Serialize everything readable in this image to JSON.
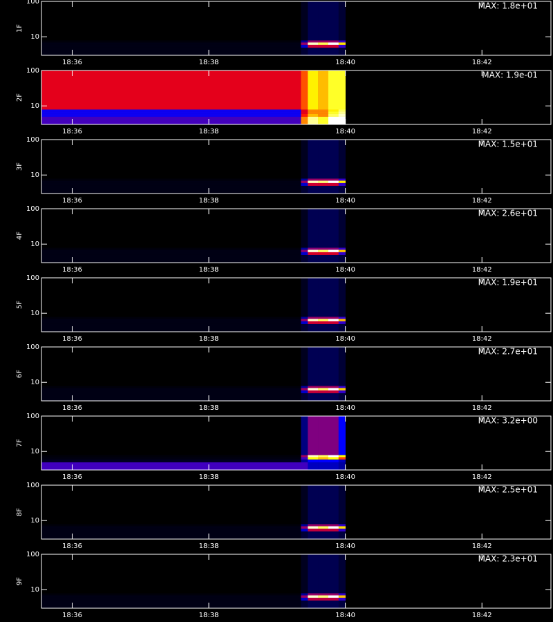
{
  "colormap": [
    "#000000",
    "#0000ff",
    "#ff0000",
    "#ffff00",
    "#ffffff"
  ],
  "chart_data": [
    {
      "type": "heatmap",
      "ylabel": "1F",
      "max": {
        "value": 18,
        "label": "MAX: 1.8e+01"
      },
      "log_y": true,
      "xlim": [
        35.55,
        43.01
      ],
      "ylim": [
        3,
        100
      ],
      "xticks": [
        {
          "value": 36,
          "label": "18:36"
        },
        {
          "value": 38,
          "label": "18:38"
        },
        {
          "value": 40,
          "label": "18:40"
        },
        {
          "value": 42,
          "label": "18:42"
        }
      ],
      "yticks": [
        10,
        100
      ],
      "x_edges": [
        35.55,
        39.35,
        39.45,
        39.6,
        39.75,
        39.9,
        40.0
      ],
      "y_edges": [
        3,
        5,
        6,
        7,
        8,
        100
      ],
      "z": [
        [
          0.36,
          0.9,
          1.4,
          1.4,
          1.4,
          1.1
        ],
        [
          0.36,
          3.6,
          8.1,
          8.1,
          8.1,
          5.4
        ],
        [
          0.36,
          7.2,
          17,
          15,
          18,
          13
        ],
        [
          0.18,
          2.7,
          7.2,
          7.2,
          7.2,
          5.4
        ],
        [
          0,
          0.54,
          1.4,
          1.4,
          1.4,
          0.9
        ]
      ]
    },
    {
      "type": "heatmap",
      "ylabel": "2F",
      "max": {
        "value": 0.19,
        "label": "MAX: 1.9e-01"
      },
      "log_y": true,
      "xlim": [
        35.55,
        43.01
      ],
      "ylim": [
        3,
        100
      ],
      "xticks": [
        {
          "value": 36,
          "label": "18:36"
        },
        {
          "value": 38,
          "label": "18:38"
        },
        {
          "value": 40,
          "label": "18:40"
        },
        {
          "value": 42,
          "label": "18:42"
        }
      ],
      "yticks": [
        10,
        100
      ],
      "x_edges": [
        35.55,
        39.35,
        39.45,
        39.6,
        39.75,
        39.9,
        40.0
      ],
      "y_edges": [
        3,
        5,
        6,
        7,
        8,
        100
      ],
      "z": [
        [
          0.06,
          0.12,
          0.17,
          0.15,
          0.19,
          0.19
        ],
        [
          0.05,
          0.1,
          0.13,
          0.12,
          0.16,
          0.18
        ],
        [
          0.05,
          0.09,
          0.12,
          0.12,
          0.15,
          0.17
        ],
        [
          0.05,
          0.09,
          0.12,
          0.12,
          0.14,
          0.16
        ],
        [
          0.09,
          0.11,
          0.14,
          0.13,
          0.15,
          0.15
        ]
      ]
    },
    {
      "type": "heatmap",
      "ylabel": "3F",
      "max": {
        "value": 15,
        "label": "MAX: 1.5e+01"
      },
      "log_y": true,
      "xlim": [
        35.55,
        43.01
      ],
      "ylim": [
        3,
        100
      ],
      "xticks": [
        {
          "value": 36,
          "label": "18:36"
        },
        {
          "value": 38,
          "label": "18:38"
        },
        {
          "value": 40,
          "label": "18:40"
        },
        {
          "value": 42,
          "label": "18:42"
        }
      ],
      "yticks": [
        10,
        100
      ],
      "x_edges": [
        35.55,
        39.35,
        39.45,
        39.6,
        39.75,
        39.9,
        40.0
      ],
      "y_edges": [
        3,
        5,
        6,
        7,
        8,
        100
      ],
      "z": [
        [
          0.3,
          0.75,
          1.2,
          1.2,
          1.2,
          0.9
        ],
        [
          0.3,
          3,
          6.8,
          6.8,
          6.8,
          4.5
        ],
        [
          0.3,
          6,
          14,
          13,
          15,
          11
        ],
        [
          0.15,
          2.3,
          6,
          6,
          6,
          4.5
        ],
        [
          0,
          0.45,
          1.2,
          1.2,
          1.2,
          0.75
        ]
      ]
    },
    {
      "type": "heatmap",
      "ylabel": "4F",
      "max": {
        "value": 26,
        "label": "MAX: 2.6e+01"
      },
      "log_y": true,
      "xlim": [
        35.55,
        43.01
      ],
      "ylim": [
        3,
        100
      ],
      "xticks": [
        {
          "value": 36,
          "label": "18:36"
        },
        {
          "value": 38,
          "label": "18:38"
        },
        {
          "value": 40,
          "label": "18:40"
        },
        {
          "value": 42,
          "label": "18:42"
        }
      ],
      "yticks": [
        10,
        100
      ],
      "x_edges": [
        35.55,
        39.35,
        39.45,
        39.6,
        39.75,
        39.9,
        40.0
      ],
      "y_edges": [
        3,
        5,
        6,
        7,
        8,
        100
      ],
      "z": [
        [
          0.52,
          1.3,
          2.1,
          2.1,
          2.1,
          1.6
        ],
        [
          0.52,
          5.2,
          12,
          12,
          12,
          7.8
        ],
        [
          0.52,
          10,
          25,
          22,
          26,
          18
        ],
        [
          0.26,
          3.9,
          10,
          10,
          10,
          7.8
        ],
        [
          0,
          0.78,
          2.1,
          2.1,
          2.1,
          1.3
        ]
      ]
    },
    {
      "type": "heatmap",
      "ylabel": "5F",
      "max": {
        "value": 19,
        "label": "MAX: 1.9e+01"
      },
      "log_y": true,
      "xlim": [
        35.55,
        43.01
      ],
      "ylim": [
        3,
        100
      ],
      "xticks": [
        {
          "value": 36,
          "label": "18:36"
        },
        {
          "value": 38,
          "label": "18:38"
        },
        {
          "value": 40,
          "label": "18:40"
        },
        {
          "value": 42,
          "label": "18:42"
        }
      ],
      "yticks": [
        10,
        100
      ],
      "x_edges": [
        35.55,
        39.35,
        39.45,
        39.6,
        39.75,
        39.9,
        40.0
      ],
      "y_edges": [
        3,
        5,
        6,
        7,
        8,
        100
      ],
      "z": [
        [
          0.38,
          0.95,
          1.5,
          1.5,
          1.5,
          1.1
        ],
        [
          0.38,
          3.8,
          8.6,
          8.6,
          8.6,
          5.7
        ],
        [
          0.38,
          7.6,
          18,
          16,
          19,
          13
        ],
        [
          0.19,
          2.9,
          7.6,
          7.6,
          7.6,
          5.7
        ],
        [
          0,
          0.57,
          1.5,
          1.5,
          1.5,
          0.95
        ]
      ]
    },
    {
      "type": "heatmap",
      "ylabel": "6F",
      "max": {
        "value": 27,
        "label": "MAX: 2.7e+01"
      },
      "log_y": true,
      "xlim": [
        35.55,
        43.01
      ],
      "ylim": [
        3,
        100
      ],
      "xticks": [
        {
          "value": 36,
          "label": "18:36"
        },
        {
          "value": 38,
          "label": "18:38"
        },
        {
          "value": 40,
          "label": "18:40"
        },
        {
          "value": 42,
          "label": "18:42"
        }
      ],
      "yticks": [
        10,
        100
      ],
      "x_edges": [
        35.55,
        39.35,
        39.45,
        39.6,
        39.75,
        39.9,
        40.0
      ],
      "y_edges": [
        3,
        5,
        6,
        7,
        8,
        100
      ],
      "z": [
        [
          0.54,
          1.4,
          2.2,
          2.2,
          2.2,
          1.6
        ],
        [
          0.54,
          5.4,
          12,
          12,
          12,
          8.1
        ],
        [
          0.54,
          11,
          26,
          23,
          27,
          19
        ],
        [
          0.27,
          4.1,
          11,
          11,
          11,
          8.1
        ],
        [
          0,
          0.81,
          2.2,
          2.2,
          2.2,
          1.4
        ]
      ]
    },
    {
      "type": "heatmap",
      "ylabel": "7F",
      "max": {
        "value": 3.2,
        "label": "MAX: 3.2e+00"
      },
      "log_y": true,
      "xlim": [
        35.55,
        43.01
      ],
      "ylim": [
        3,
        100
      ],
      "xticks": [
        {
          "value": 36,
          "label": "18:36"
        },
        {
          "value": 38,
          "label": "18:38"
        },
        {
          "value": 40,
          "label": "18:40"
        },
        {
          "value": 42,
          "label": "18:42"
        }
      ],
      "yticks": [
        10,
        100
      ],
      "x_edges": [
        35.55,
        39.35,
        39.45,
        39.6,
        39.75,
        39.9,
        40.0
      ],
      "y_edges": [
        3,
        5,
        6,
        7,
        8,
        100
      ],
      "z": [
        [
          1.0,
          1.0,
          0.6,
          0.6,
          0.6,
          0.5
        ],
        [
          0.1,
          0.5,
          0.8,
          0.8,
          0.8,
          0.6
        ],
        [
          0.05,
          1.0,
          2.4,
          2.2,
          2.4,
          1.8
        ],
        [
          0.03,
          1.3,
          3.0,
          2.7,
          3.2,
          2.4
        ],
        [
          0,
          0.4,
          1.2,
          1.2,
          1.2,
          0.8
        ]
      ]
    },
    {
      "type": "heatmap",
      "ylabel": "8F",
      "max": {
        "value": 25,
        "label": "MAX: 2.5e+01"
      },
      "log_y": true,
      "xlim": [
        35.55,
        43.01
      ],
      "ylim": [
        3,
        100
      ],
      "xticks": [
        {
          "value": 36,
          "label": "18:36"
        },
        {
          "value": 38,
          "label": "18:38"
        },
        {
          "value": 40,
          "label": "18:40"
        },
        {
          "value": 42,
          "label": "18:42"
        }
      ],
      "yticks": [
        10,
        100
      ],
      "x_edges": [
        35.55,
        39.35,
        39.45,
        39.6,
        39.75,
        39.9,
        40.0
      ],
      "y_edges": [
        3,
        5,
        6,
        7,
        8,
        100
      ],
      "z": [
        [
          0.5,
          1.3,
          2,
          2,
          2,
          1.5
        ],
        [
          0.5,
          5,
          11,
          11,
          11,
          7.5
        ],
        [
          0.5,
          10,
          24,
          21,
          25,
          18
        ],
        [
          0.25,
          3.8,
          10,
          10,
          10,
          7.5
        ],
        [
          0,
          0.75,
          2,
          2,
          2,
          1.3
        ]
      ]
    },
    {
      "type": "heatmap",
      "ylabel": "9F",
      "max": {
        "value": 23,
        "label": "MAX: 2.3e+01"
      },
      "log_y": true,
      "xlim": [
        35.55,
        43.01
      ],
      "ylim": [
        3,
        100
      ],
      "xticks": [
        {
          "value": 36,
          "label": "18:36"
        },
        {
          "value": 38,
          "label": "18:38"
        },
        {
          "value": 40,
          "label": "18:40"
        },
        {
          "value": 42,
          "label": "18:42"
        }
      ],
      "yticks": [
        10,
        100
      ],
      "x_edges": [
        35.55,
        39.35,
        39.45,
        39.6,
        39.75,
        39.9,
        40.0
      ],
      "y_edges": [
        3,
        5,
        6,
        7,
        8,
        100
      ],
      "z": [
        [
          0.46,
          1.2,
          1.8,
          1.8,
          1.8,
          1.4
        ],
        [
          0.46,
          4.6,
          10,
          10,
          10,
          6.9
        ],
        [
          0.46,
          9.2,
          22,
          20,
          23,
          16
        ],
        [
          0.23,
          3.5,
          9.2,
          9.2,
          9.2,
          6.9
        ],
        [
          0,
          0.69,
          1.8,
          1.8,
          1.8,
          1.2
        ]
      ]
    }
  ]
}
